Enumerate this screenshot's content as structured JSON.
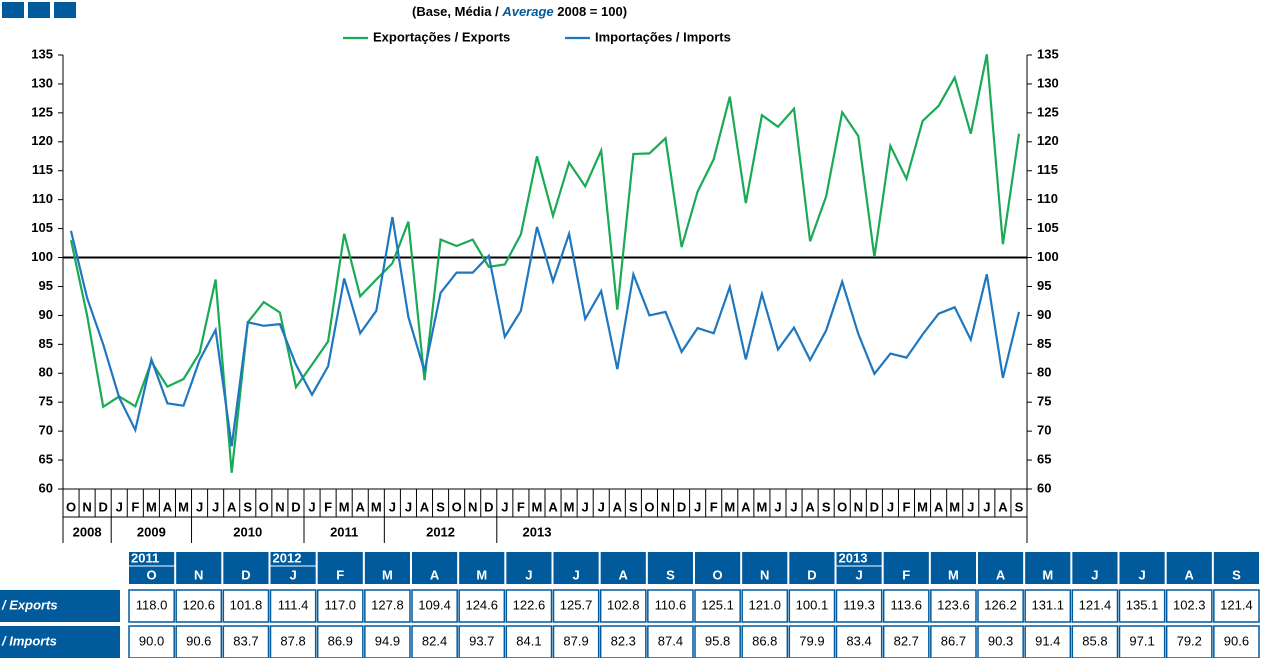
{
  "chart_data": {
    "type": "line",
    "subtitle_parts": [
      "(Base, Média /",
      "Average",
      "2008 = 100)"
    ],
    "categories": [
      "O",
      "N",
      "D",
      "J",
      "F",
      "M",
      "A",
      "M",
      "J",
      "J",
      "A",
      "S",
      "O",
      "N",
      "D",
      "J",
      "F",
      "M",
      "A",
      "M",
      "J",
      "J",
      "A",
      "S",
      "O",
      "N",
      "D",
      "J",
      "F",
      "M",
      "A",
      "M",
      "J",
      "J",
      "A",
      "S",
      "O",
      "N",
      "D",
      "J",
      "F",
      "M",
      "A",
      "M",
      "J",
      "J",
      "A",
      "S",
      "O",
      "N",
      "D",
      "J",
      "F",
      "M",
      "A",
      "M",
      "J",
      "J",
      "A",
      "S"
    ],
    "years": [
      "2008",
      "2009",
      "2010",
      "2011",
      "2012",
      "2013"
    ],
    "series": [
      {
        "name": "Exportações / Exports",
        "color": "#1aaa55",
        "values": [
          103,
          90,
          74.2,
          76,
          74.3,
          82,
          77.7,
          79,
          83.5,
          96.2,
          62.8,
          88.8,
          92.3,
          90.5,
          77.6,
          81.5,
          85.5,
          104.1,
          93.3,
          96.2,
          99,
          106.2,
          78.8,
          103.1,
          102,
          103.1,
          98.4,
          98.8,
          104,
          117.5,
          107.2,
          116.4,
          112.3,
          118.5,
          91,
          117.9,
          118.0,
          120.6,
          101.8,
          111.4,
          117.0,
          127.8,
          109.4,
          124.6,
          122.6,
          125.7,
          102.8,
          110.6,
          125.1,
          121.0,
          100.1,
          119.3,
          113.6,
          123.6,
          126.2,
          131.1,
          121.4,
          135.1,
          102.3,
          121.4
        ]
      },
      {
        "name": "Importações / Imports",
        "color": "#1f77c0",
        "values": [
          104.6,
          93,
          85,
          75.8,
          70.2,
          82.4,
          74.8,
          74.4,
          82.3,
          87.5,
          67.4,
          88.8,
          88.2,
          88.5,
          81.5,
          76.3,
          81.2,
          96.4,
          86.9,
          90.8,
          107,
          89.7,
          80.4,
          93.9,
          97.4,
          97.4,
          100.3,
          86.3,
          90.8,
          105.3,
          95.9,
          104.1,
          89.4,
          94.2,
          80.7,
          97.1,
          90.0,
          90.6,
          83.7,
          87.8,
          86.9,
          94.9,
          82.4,
          93.7,
          84.1,
          87.9,
          82.3,
          87.4,
          95.8,
          86.8,
          79.9,
          83.4,
          82.7,
          86.7,
          90.3,
          91.4,
          85.8,
          97.1,
          79.2,
          90.6
        ]
      }
    ],
    "ylim": [
      60,
      135
    ],
    "yticks": [
      60,
      65,
      70,
      75,
      80,
      85,
      90,
      95,
      100,
      105,
      110,
      115,
      120,
      125,
      130,
      135
    ],
    "reference_line": 100
  },
  "table": {
    "year_row": [
      "2011",
      null,
      null,
      "2012",
      null,
      null,
      null,
      null,
      null,
      null,
      null,
      null,
      null,
      null,
      null,
      "2013",
      null,
      null,
      null,
      null,
      null,
      null,
      null,
      null
    ],
    "months": [
      "O",
      "N",
      "D",
      "J",
      "F",
      "M",
      "A",
      "M",
      "J",
      "J",
      "A",
      "S",
      "O",
      "N",
      "D",
      "J",
      "F",
      "M",
      "A",
      "M",
      "J",
      "J",
      "A",
      "S"
    ],
    "rows": [
      {
        "label": "/ Exports",
        "cells": [
          "118.0",
          "120.6",
          "101.8",
          "111.4",
          "117.0",
          "127.8",
          "109.4",
          "124.6",
          "122.6",
          "125.7",
          "102.8",
          "110.6",
          "125.1",
          "121.0",
          "100.1",
          "119.3",
          "113.6",
          "123.6",
          "126.2",
          "131.1",
          "121.4",
          "135.1",
          "102.3",
          "121.4"
        ]
      },
      {
        "label": "/ Imports",
        "cells": [
          "90.0",
          "90.6",
          "83.7",
          "87.8",
          "86.9",
          "94.9",
          "82.4",
          "93.7",
          "84.1",
          "87.9",
          "82.3",
          "87.4",
          "95.8",
          "86.8",
          "79.9",
          "83.4",
          "82.7",
          "86.7",
          "90.3",
          "91.4",
          "85.8",
          "97.1",
          "79.2",
          "90.6"
        ]
      }
    ]
  }
}
